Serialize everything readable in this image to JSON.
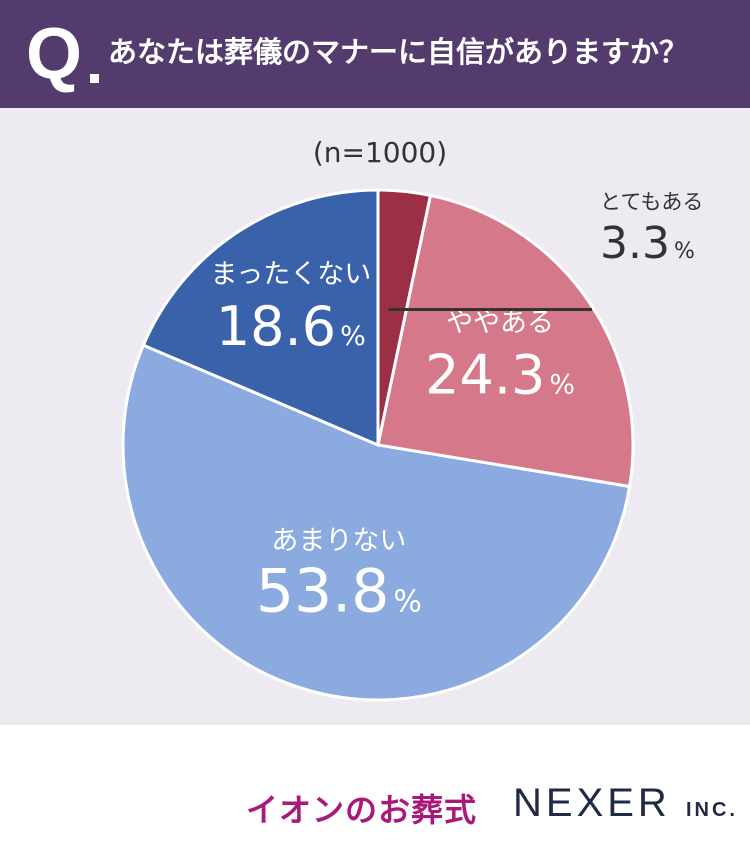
{
  "header": {
    "q_mark": "Q",
    "question": "あなたは葬儀のマナーに自信がありますか？"
  },
  "sample_label": "(n=1000)",
  "chart_data": {
    "type": "pie",
    "categories": [
      "とてもある",
      "ややある",
      "あまりない",
      "まったくない"
    ],
    "values": [
      3.3,
      24.3,
      53.8,
      18.6
    ],
    "unit": "%",
    "colors": [
      "#9b2f45",
      "#d4788a",
      "#8aaae0",
      "#3a62aa"
    ],
    "start_angle": "12 o'clock",
    "direction": "clockwise"
  },
  "footer": {
    "brand_left": "イオンのお葬式",
    "brand_right": "NEXER",
    "brand_right_suffix": "INC."
  }
}
